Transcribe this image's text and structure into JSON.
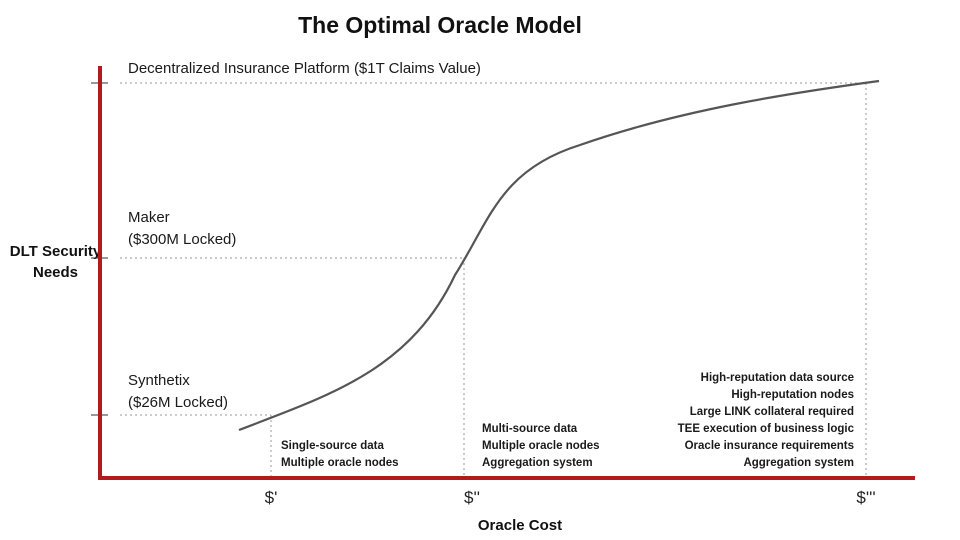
{
  "title": "The Optimal Oracle Model",
  "y_axis_label": "DLT Security Needs",
  "x_axis_label": "Oracle Cost",
  "levels": [
    {
      "line1": "Synthetix",
      "line2": "($26M Locked)"
    },
    {
      "line1": "Maker",
      "line2": "($300M Locked)"
    },
    {
      "line1": "Decentralized Insurance Platform ($1T Claims Value)"
    }
  ],
  "x_ticks": [
    "$'",
    "$''",
    "$'''"
  ],
  "features": [
    [
      "Single-source data",
      "Multiple oracle nodes"
    ],
    [
      "Multi-source data",
      "Multiple oracle nodes",
      "Aggregation system"
    ],
    [
      "High-reputation data source",
      "High-reputation nodes",
      "Large LINK collateral required",
      "TEE execution of business logic",
      "Oracle insurance requirements",
      "Aggregation system"
    ]
  ],
  "colors": {
    "axis": "#b01c1c",
    "curve": "#555555",
    "guides": "#999999"
  }
}
